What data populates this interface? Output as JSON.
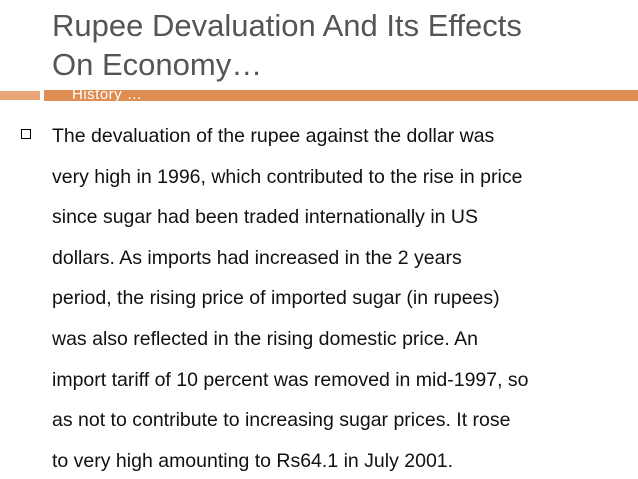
{
  "slide": {
    "title_lines": [
      "Rupee Devaluation And Its Effects",
      "On Economy…"
    ],
    "subtitle": "History …",
    "accent_colors": {
      "bar": "#de8e53",
      "bar_left": "#e8a679"
    },
    "bullet_icon": "square-bullet-icon",
    "body_lines": [
      "The devaluation of the rupee against the dollar was",
      "very high in 1996, which contributed to the rise in price",
      "since sugar had been traded internationally in US",
      "dollars. As imports had increased in the 2 years",
      "period, the rising price of imported sugar (in rupees)",
      "was also reflected in the rising domestic price. An",
      "import tariff of 10 percent was removed in mid-1997, so",
      "as not to contribute to increasing sugar prices. It rose",
      "to very high amounting to Rs64.1 in July 2001."
    ]
  }
}
